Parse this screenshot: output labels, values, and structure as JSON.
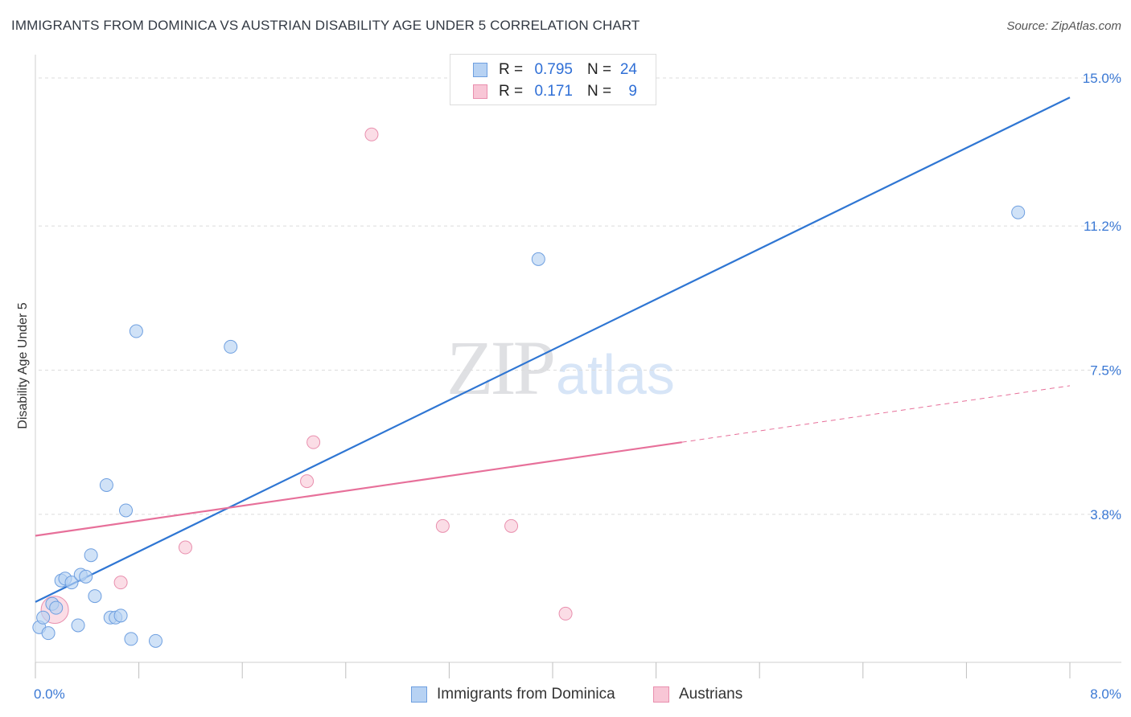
{
  "title": "IMMIGRANTS FROM DOMINICA VS AUSTRIAN DISABILITY AGE UNDER 5 CORRELATION CHART",
  "source": "Source: ZipAtlas.com",
  "watermark": {
    "zip": "ZIP",
    "atlas": "atlas"
  },
  "colors": {
    "blue": "#2f76d3",
    "blue_fill": "#b7d2f3",
    "blue_stroke": "#6e9fe0",
    "pink": "#e7709a",
    "pink_fill": "#f8c6d6",
    "pink_stroke": "#e98fae",
    "grid": "#dcdcdc",
    "axis_label": "#3a78d4"
  },
  "stats": [
    {
      "r_label": "R =",
      "r_value": "0.795",
      "n_label": "N =",
      "n_value": "24"
    },
    {
      "r_label": "R =",
      "r_value": "0.171",
      "n_label": "N =",
      "n_value": "9"
    }
  ],
  "legend": [
    {
      "label": "Immigrants from Dominica"
    },
    {
      "label": "Austrians"
    }
  ],
  "chart_data": {
    "type": "scatter",
    "title": "IMMIGRANTS FROM DOMINICA VS AUSTRIAN DISABILITY AGE UNDER 5 CORRELATION CHART",
    "xlabel": "",
    "ylabel": "Disability Age Under 5",
    "xlim": [
      0.0,
      8.0
    ],
    "ylim": [
      0.0,
      15.0
    ],
    "x_tick_labels": [
      "0.0%",
      "8.0%"
    ],
    "y_ticks": [
      3.8,
      7.5,
      11.2,
      15.0
    ],
    "y_tick_labels": [
      "3.8%",
      "7.5%",
      "11.2%",
      "15.0%"
    ],
    "grid": true,
    "legend_position": "bottom-center",
    "series": [
      {
        "name": "Immigrants from Dominica",
        "points": [
          [
            0.03,
            0.9
          ],
          [
            0.06,
            1.15
          ],
          [
            0.1,
            0.75
          ],
          [
            0.13,
            1.5
          ],
          [
            0.16,
            1.4
          ],
          [
            0.2,
            2.1
          ],
          [
            0.23,
            2.15
          ],
          [
            0.28,
            2.05
          ],
          [
            0.33,
            0.95
          ],
          [
            0.35,
            2.25
          ],
          [
            0.39,
            2.2
          ],
          [
            0.43,
            2.75
          ],
          [
            0.46,
            1.7
          ],
          [
            0.55,
            4.55
          ],
          [
            0.58,
            1.15
          ],
          [
            0.62,
            1.15
          ],
          [
            0.66,
            1.2
          ],
          [
            0.7,
            3.9
          ],
          [
            0.74,
            0.6
          ],
          [
            0.78,
            8.5
          ],
          [
            0.93,
            0.55
          ],
          [
            1.51,
            8.1
          ],
          [
            3.89,
            10.35
          ],
          [
            7.6,
            11.55
          ]
        ],
        "trend": {
          "x": [
            0.0,
            8.0
          ],
          "y": [
            1.55,
            14.5
          ]
        }
      },
      {
        "name": "Austrians",
        "points": [
          [
            0.15,
            1.35
          ],
          [
            0.66,
            2.05
          ],
          [
            1.16,
            2.95
          ],
          [
            2.1,
            4.65
          ],
          [
            2.15,
            5.65
          ],
          [
            2.6,
            13.55
          ],
          [
            3.15,
            3.5
          ],
          [
            3.68,
            3.5
          ],
          [
            4.1,
            1.25
          ]
        ],
        "trend": {
          "x": [
            0.0,
            5.0
          ],
          "y": [
            3.25,
            5.65
          ]
        },
        "trend_extension": {
          "x": [
            5.0,
            8.0
          ],
          "y": [
            5.65,
            7.1
          ]
        }
      }
    ]
  }
}
